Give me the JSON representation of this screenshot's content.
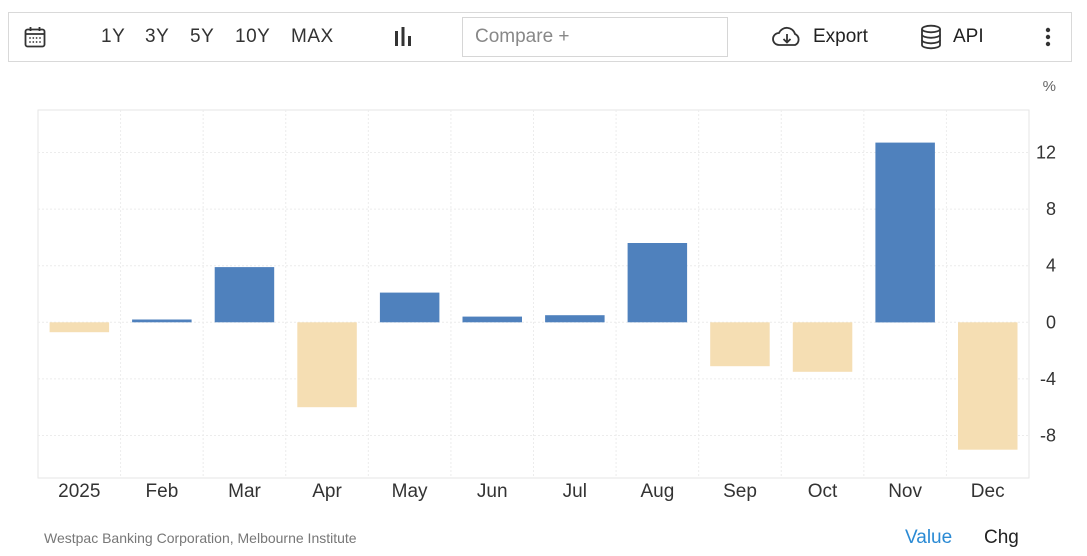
{
  "toolbar": {
    "ranges": [
      "1Y",
      "3Y",
      "5Y",
      "10Y",
      "MAX"
    ],
    "compare_placeholder": "Compare +",
    "export_label": "Export",
    "api_label": "API",
    "icons": {
      "calendar": "calendar-icon",
      "chart_type": "bar-chart-icon",
      "export": "cloud-download-icon",
      "api": "database-icon",
      "more": "more-vertical-icon"
    }
  },
  "footer": {
    "source": "Westpac Banking Corporation, Melbourne Institute",
    "toggle_value": "Value",
    "toggle_chg": "Chg"
  },
  "chart_data": {
    "type": "bar",
    "categories": [
      "2025",
      "Feb",
      "Mar",
      "Apr",
      "May",
      "Jun",
      "Jul",
      "Aug",
      "Sep",
      "Oct",
      "Nov",
      "Dec"
    ],
    "values": [
      -0.7,
      0.2,
      3.9,
      -6.0,
      2.1,
      0.4,
      0.5,
      5.6,
      -3.1,
      -3.5,
      12.7,
      -9.0
    ],
    "ylabel": "%",
    "ylim": [
      -11,
      15
    ],
    "yticks": [
      -8,
      -4,
      0,
      4,
      8,
      12
    ],
    "y_axis_position": "right",
    "grid": true,
    "colors": {
      "positive": "#4f81bd",
      "negative": "#f5deb3"
    }
  }
}
